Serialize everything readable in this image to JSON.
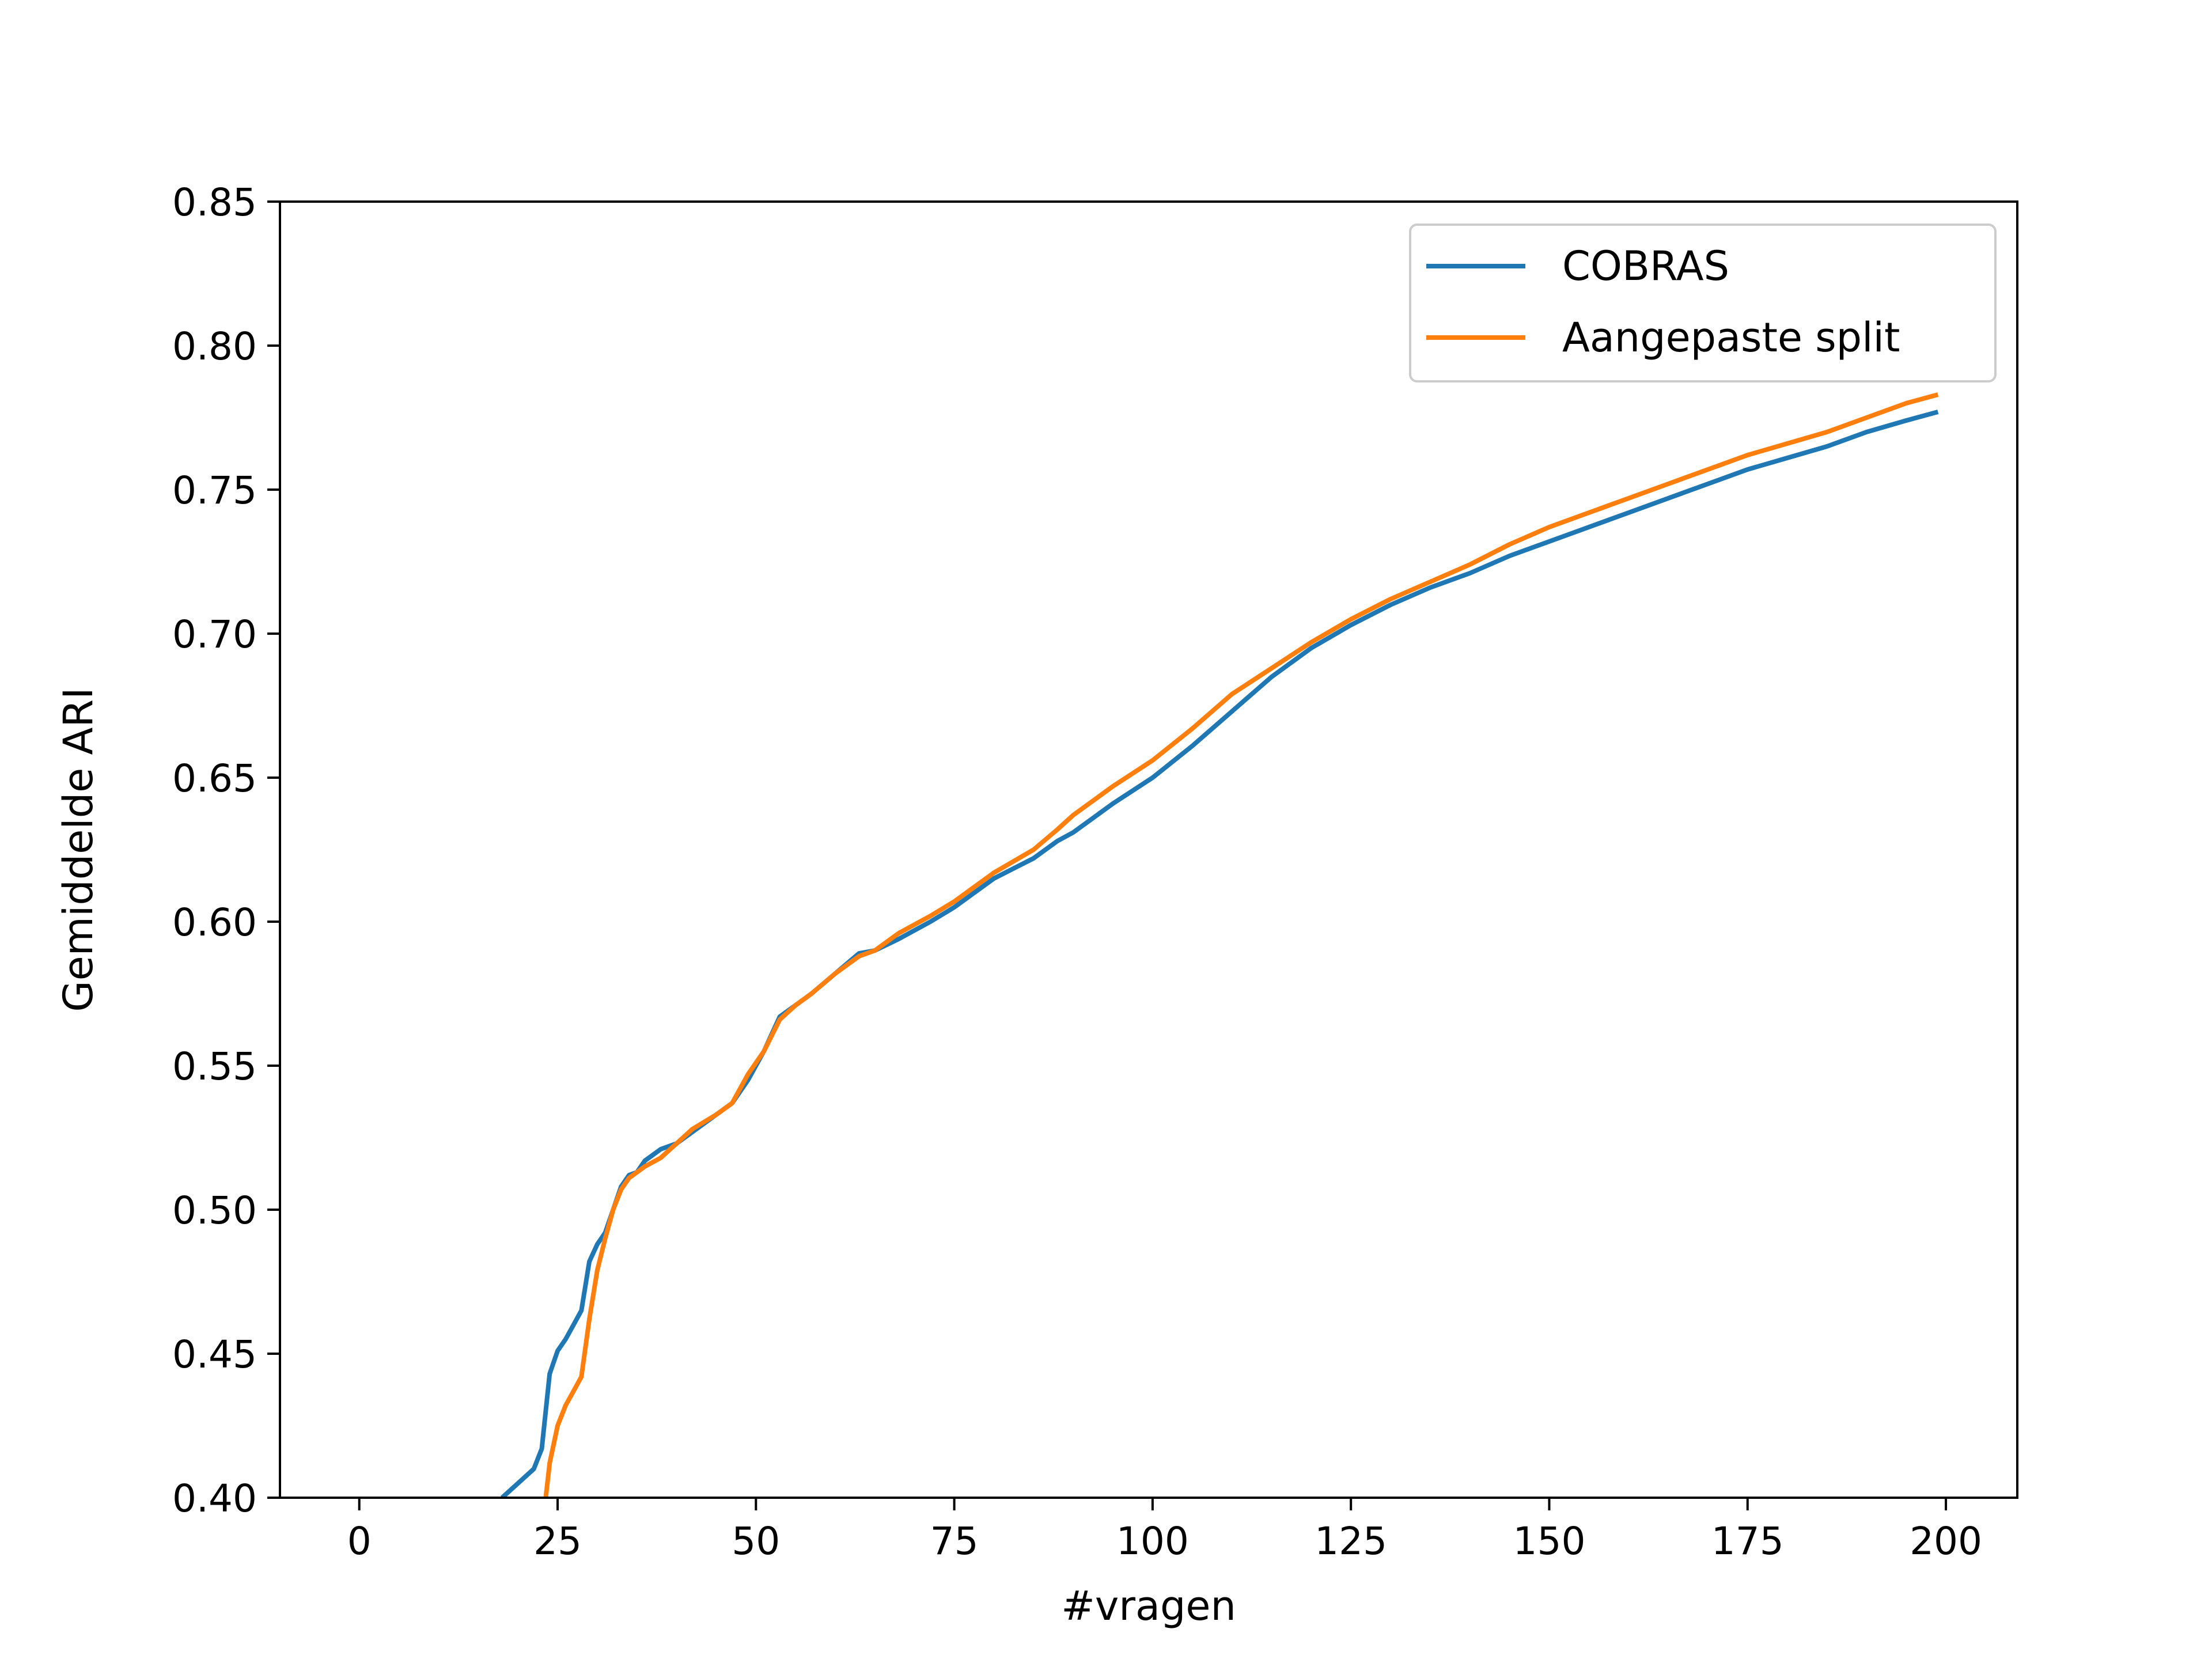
{
  "chart_data": {
    "type": "line",
    "title": "",
    "xlabel": "#vragen",
    "ylabel": "Gemiddelde ARI",
    "xlim": [
      -10,
      209
    ],
    "ylim": [
      0.4,
      0.85
    ],
    "xticks": [
      0,
      25,
      50,
      75,
      100,
      125,
      150,
      175,
      200
    ],
    "yticks": [
      0.4,
      0.45,
      0.5,
      0.55,
      0.6,
      0.65,
      0.7,
      0.75,
      0.8,
      0.85
    ],
    "xtick_labels": [
      "0",
      "25",
      "50",
      "75",
      "100",
      "125",
      "150",
      "175",
      "200"
    ],
    "ytick_labels": [
      "0.40",
      "0.45",
      "0.50",
      "0.55",
      "0.60",
      "0.65",
      "0.70",
      "0.75",
      "0.80",
      "0.85"
    ],
    "grid": false,
    "legend_position": "top-right",
    "series": [
      {
        "name": "COBRAS",
        "color": "#1f77b4",
        "x": [
          18,
          20,
          22,
          23,
          24,
          25,
          26,
          27,
          28,
          29,
          30,
          31,
          32,
          33,
          34,
          35,
          36,
          38,
          40,
          42,
          45,
          47,
          49,
          51,
          53,
          55,
          57,
          60,
          63,
          65,
          68,
          70,
          72,
          75,
          78,
          80,
          85,
          88,
          90,
          95,
          100,
          105,
          110,
          115,
          120,
          125,
          130,
          135,
          140,
          145,
          150,
          155,
          160,
          165,
          170,
          175,
          180,
          185,
          190,
          195,
          199
        ],
        "y": [
          0.4,
          0.405,
          0.41,
          0.417,
          0.443,
          0.451,
          0.455,
          0.46,
          0.465,
          0.482,
          0.488,
          0.492,
          0.5,
          0.508,
          0.512,
          0.513,
          0.517,
          0.521,
          0.523,
          0.527,
          0.533,
          0.537,
          0.545,
          0.555,
          0.567,
          0.571,
          0.575,
          0.582,
          0.589,
          0.59,
          0.594,
          0.597,
          0.6,
          0.605,
          0.611,
          0.615,
          0.622,
          0.628,
          0.631,
          0.641,
          0.65,
          0.661,
          0.673,
          0.685,
          0.695,
          0.703,
          0.71,
          0.716,
          0.721,
          0.727,
          0.732,
          0.737,
          0.742,
          0.747,
          0.752,
          0.757,
          0.761,
          0.765,
          0.77,
          0.774,
          0.777
        ]
      },
      {
        "name": "Aangepaste split",
        "color": "#ff7f0e",
        "x": [
          23.5,
          24,
          25,
          26,
          27,
          28,
          29,
          30,
          31,
          32,
          33,
          34,
          35,
          36,
          38,
          40,
          42,
          45,
          47,
          49,
          51,
          53,
          55,
          57,
          60,
          63,
          65,
          68,
          70,
          72,
          75,
          78,
          80,
          85,
          88,
          90,
          95,
          100,
          105,
          110,
          115,
          120,
          125,
          130,
          135,
          140,
          145,
          150,
          155,
          160,
          165,
          170,
          175,
          180,
          185,
          190,
          195,
          199
        ],
        "y": [
          0.4,
          0.412,
          0.425,
          0.432,
          0.437,
          0.442,
          0.462,
          0.479,
          0.49,
          0.5,
          0.507,
          0.511,
          0.513,
          0.515,
          0.518,
          0.523,
          0.528,
          0.533,
          0.537,
          0.547,
          0.555,
          0.566,
          0.571,
          0.575,
          0.582,
          0.588,
          0.59,
          0.596,
          0.599,
          0.602,
          0.607,
          0.613,
          0.617,
          0.625,
          0.632,
          0.637,
          0.647,
          0.656,
          0.667,
          0.679,
          0.688,
          0.697,
          0.705,
          0.712,
          0.718,
          0.724,
          0.731,
          0.737,
          0.742,
          0.747,
          0.752,
          0.757,
          0.762,
          0.766,
          0.77,
          0.775,
          0.78,
          0.783
        ]
      }
    ]
  }
}
